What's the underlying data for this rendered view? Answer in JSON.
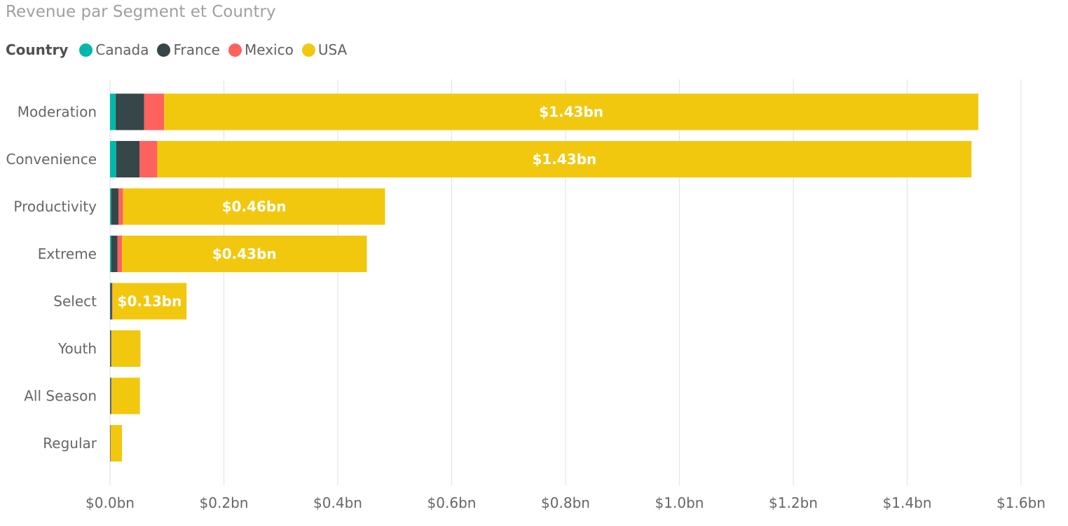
{
  "chart_data": {
    "type": "bar",
    "orientation": "horizontal",
    "stacked": true,
    "title": "Revenue par Segment et Country",
    "legend_title": "Country",
    "legend_position": "top-left",
    "grid": true,
    "categories": [
      "Moderation",
      "Convenience",
      "Productivity",
      "Extreme",
      "Select",
      "Youth",
      "All Season",
      "Regular"
    ],
    "series": [
      {
        "name": "Canada",
        "color": "#01B8AA",
        "values": [
          0.01,
          0.011,
          0.002,
          0.002,
          0.0005,
          0.0005,
          0.0005,
          0.0002
        ]
      },
      {
        "name": "France",
        "color": "#374649",
        "values": [
          0.05,
          0.041,
          0.013,
          0.011,
          0.003,
          0.0015,
          0.0015,
          0.0005
        ]
      },
      {
        "name": "Mexico",
        "color": "#FD625E",
        "values": [
          0.035,
          0.031,
          0.008,
          0.008,
          0.001,
          0.0005,
          0.0005,
          0.0003
        ]
      },
      {
        "name": "USA",
        "color": "#F2C80F",
        "values": [
          1.43,
          1.43,
          0.46,
          0.43,
          0.13,
          0.051,
          0.05,
          0.02
        ]
      }
    ],
    "data_labels": {
      "series": "USA",
      "labels": [
        "$1.43bn",
        "$1.43bn",
        "$0.46bn",
        "$0.43bn",
        "$0.13bn",
        "",
        "",
        ""
      ]
    },
    "xlim": [
      0,
      1.6
    ],
    "x_ticks": [
      0,
      0.2,
      0.4,
      0.6,
      0.8,
      1.0,
      1.2,
      1.4,
      1.6
    ],
    "x_tick_labels": [
      "$0.0bn",
      "$0.2bn",
      "$0.4bn",
      "$0.6bn",
      "$0.8bn",
      "$1.0bn",
      "$1.2bn",
      "$1.4bn",
      "$1.6bn"
    ],
    "xlabel": "",
    "ylabel": ""
  }
}
